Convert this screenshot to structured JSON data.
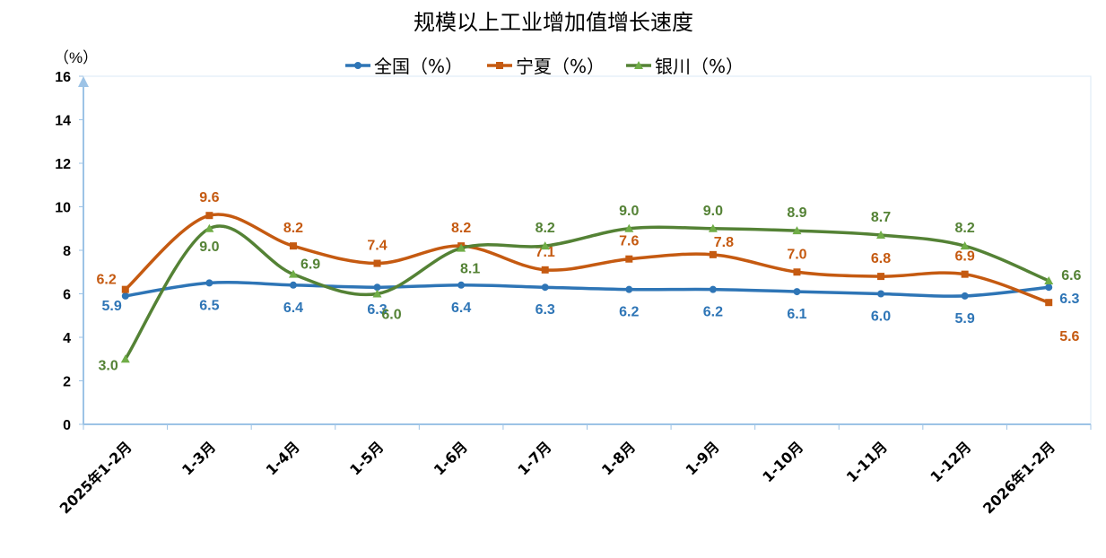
{
  "chart_data": {
    "type": "line",
    "title": "规模以上工业增加值增长速度",
    "ylabel": "（%）",
    "ylim": [
      0,
      16
    ],
    "yticks": [
      0,
      2,
      4,
      6,
      8,
      10,
      12,
      14,
      16
    ],
    "grid": false,
    "legend_position": "top",
    "smooth": true,
    "categories": [
      "2025年1-2月",
      "1-3月",
      "1-4月",
      "1-5月",
      "1-6月",
      "1-7月",
      "1-8月",
      "1-9月",
      "1-10月",
      "1-11月",
      "1-12月",
      "2026年1-2月"
    ],
    "series": [
      {
        "name": "全国（%）",
        "color": "#2e75b6",
        "marker": "circle",
        "values": [
          5.9,
          6.5,
          6.4,
          6.3,
          6.4,
          6.3,
          6.2,
          6.2,
          6.1,
          6.0,
          5.9,
          6.3
        ]
      },
      {
        "name": "宁夏（%）",
        "color": "#c55a11",
        "marker": "square",
        "values": [
          6.2,
          9.6,
          8.2,
          7.4,
          8.2,
          7.1,
          7.6,
          7.8,
          7.0,
          6.8,
          6.9,
          5.6
        ]
      },
      {
        "name": "银川（%）",
        "color": "#548235",
        "marker_color": "#70ad47",
        "marker": "triangle",
        "values": [
          3.0,
          9.0,
          6.9,
          6.0,
          8.1,
          8.2,
          9.0,
          9.0,
          8.9,
          8.7,
          8.2,
          6.6
        ]
      }
    ]
  }
}
